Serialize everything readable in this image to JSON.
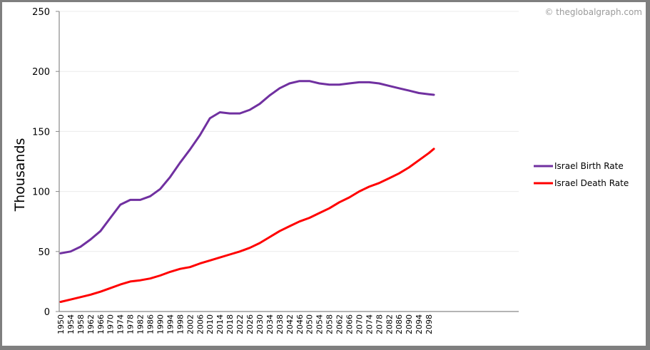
{
  "watermark": "© theglobalgraph.com",
  "chart_data": {
    "type": "line",
    "title": "",
    "xlabel": "",
    "ylabel": "Thousands",
    "ylim": [
      0,
      250
    ],
    "yticks": [
      0,
      50,
      100,
      150,
      200,
      250
    ],
    "grid": true,
    "legend_position": "right",
    "x": [
      1950,
      1954,
      1958,
      1962,
      1966,
      1970,
      1974,
      1978,
      1982,
      1986,
      1990,
      1994,
      1998,
      2002,
      2006,
      2010,
      2014,
      2018,
      2022,
      2026,
      2030,
      2034,
      2038,
      2042,
      2046,
      2050,
      2054,
      2058,
      2062,
      2066,
      2070,
      2074,
      2078,
      2082,
      2086,
      2090,
      2094,
      2098,
      2100
    ],
    "xticks": [
      "1950",
      "1954",
      "1958",
      "1962",
      "1966",
      "1970",
      "1974",
      "1978",
      "1982",
      "1986",
      "1990",
      "1994",
      "1998",
      "2002",
      "2006",
      "2010",
      "2014",
      "2018",
      "2022",
      "2026",
      "2030",
      "2034",
      "2038",
      "2042",
      "2046",
      "2050",
      "2054",
      "2058",
      "2062",
      "2066",
      "2070",
      "2074",
      "2078",
      "2082",
      "2086",
      "2090",
      "2094",
      "2098"
    ],
    "series": [
      {
        "name": "Israel Birth Rate",
        "color": "#7030a0",
        "values": [
          48.5,
          50,
          54,
          60,
          67,
          78,
          89,
          93,
          93,
          96,
          102,
          112,
          124,
          135,
          147,
          161,
          166,
          165,
          165,
          168,
          173,
          180,
          186,
          190,
          192,
          192,
          190,
          189,
          189,
          190,
          191,
          191,
          190,
          188,
          186,
          184,
          182,
          181,
          180.5
        ]
      },
      {
        "name": "Israel Death Rate",
        "color": "#ff0000",
        "values": [
          8,
          10,
          12,
          14,
          16.5,
          19.5,
          22.5,
          25,
          26,
          27.5,
          30,
          33,
          35.5,
          37,
          40,
          42.5,
          45,
          47.5,
          50,
          53,
          57,
          62,
          67,
          71,
          75,
          78,
          82,
          86,
          91,
          95,
          100,
          104,
          107,
          111,
          115,
          120,
          126,
          132,
          135.5
        ]
      }
    ]
  }
}
